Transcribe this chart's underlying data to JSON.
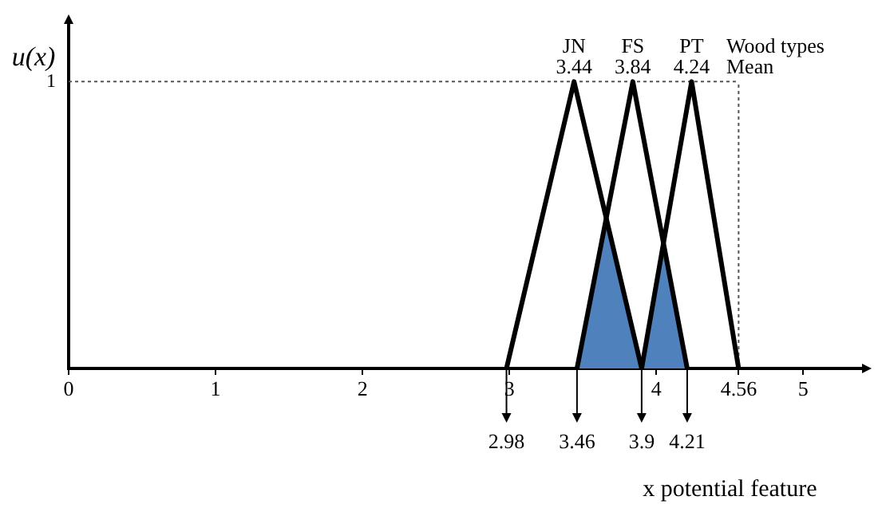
{
  "chart_data": {
    "type": "line",
    "ylabel": "u(x)",
    "xlabel": "x potential feature",
    "xlim": [
      0,
      5.4
    ],
    "xticks": [
      0,
      1,
      2,
      3,
      4,
      4.56,
      5
    ],
    "ylim": [
      0,
      1.2
    ],
    "yticks": [
      1
    ],
    "series": [
      {
        "type": "area",
        "color": "#4f81bd",
        "x": [
          3.46,
          3.66,
          3.9
        ],
        "values": [
          0,
          0.52,
          0
        ]
      },
      {
        "type": "area",
        "color": "#4f81bd",
        "x": [
          3.9,
          4.05,
          4.21
        ],
        "values": [
          0,
          0.44,
          0
        ]
      },
      {
        "name": "JN",
        "type": "line",
        "color": "#000000",
        "x": [
          2.98,
          3.44,
          3.9
        ],
        "values": [
          0,
          1,
          0
        ]
      },
      {
        "name": "FS",
        "type": "line",
        "color": "#000000",
        "x": [
          3.46,
          3.84,
          4.21
        ],
        "values": [
          0,
          1,
          0
        ]
      },
      {
        "name": "PT",
        "type": "line",
        "color": "#000000",
        "x": [
          3.9,
          4.24,
          4.56
        ],
        "values": [
          0,
          1,
          0
        ]
      }
    ],
    "ref_lines": [
      {
        "axis": "y",
        "value": 1,
        "line_style": "dotted",
        "color": "#555555"
      },
      {
        "axis": "x",
        "value": 4.56,
        "line_style": "dotted",
        "color": "#555555"
      }
    ],
    "annotations": [
      "Wood types",
      "Mean",
      {
        "text": "3.44",
        "x": 3.44,
        "y": 1
      },
      {
        "text": "3.84",
        "x": 3.84,
        "y": 1
      },
      {
        "text": "4.24",
        "x": 4.24,
        "y": 1
      },
      {
        "text": "2.98",
        "x": 2.98,
        "y": 0
      },
      {
        "text": "3.46",
        "x": 3.46,
        "y": 0
      },
      {
        "text": "3.9",
        "x": 3.9,
        "y": 0
      },
      {
        "text": "4.21",
        "x": 4.21,
        "y": 0
      }
    ],
    "grid": false,
    "legend": false,
    "marker": "none",
    "line_style": "solid"
  }
}
